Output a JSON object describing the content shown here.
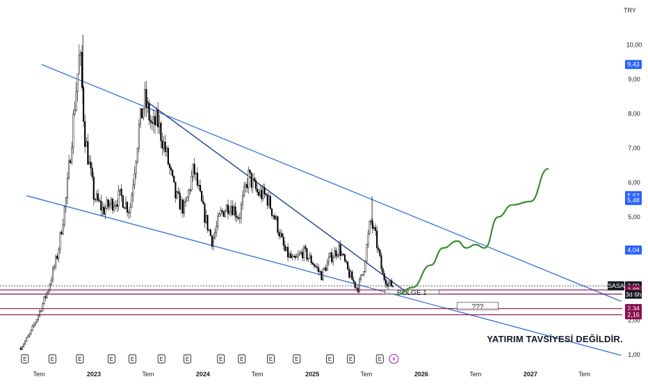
{
  "currency": "TRY",
  "symbol": "SASA",
  "countdown": "3d 6h",
  "disclaimer": "YATIRIM TAVSİYESİ DEĞİLDİR.",
  "colors": {
    "up": "#ffffff",
    "down": "#000000",
    "channel": "#2e6fd8",
    "trendline": "#1a3f8f",
    "horizontal": "#880e4f",
    "projection": "#3a8c2f",
    "badge_blue": "#2962ff",
    "badge_maroon": "#880e4f",
    "badge_dark": "#131722"
  },
  "chart_data": {
    "type": "candlestick",
    "y_axis": {
      "range": [
        0.8,
        11.0
      ],
      "ticks": [
        "1,00",
        "2,00",
        "3,00",
        "4,00",
        "5,00",
        "6,00",
        "7,00",
        "8,00",
        "9,00",
        "10,00"
      ]
    },
    "x_axis": {
      "ticks": [
        {
          "label": "Tem",
          "x": "2022-07-01",
          "year": false
        },
        {
          "label": "2023",
          "x": "2023-01-01",
          "year": true
        },
        {
          "label": "Tem",
          "x": "2023-07-01",
          "year": false
        },
        {
          "label": "2024",
          "x": "2024-01-01",
          "year": true
        },
        {
          "label": "Tem",
          "x": "2024-07-01",
          "year": false
        },
        {
          "label": "2025",
          "x": "2025-01-01",
          "year": true
        },
        {
          "label": "Tem",
          "x": "2025-07-01",
          "year": false
        },
        {
          "label": "2026",
          "x": "2026-01-01",
          "year": true
        },
        {
          "label": "Tem",
          "x": "2026-07-01",
          "year": false
        },
        {
          "label": "2027",
          "x": "2027-01-01",
          "year": true
        },
        {
          "label": "Tem",
          "x": "2027-07-01",
          "year": false
        }
      ]
    },
    "price_path": [
      [
        "2022-05-01",
        1.2
      ],
      [
        "2022-06-01",
        1.6
      ],
      [
        "2022-07-01",
        2.2
      ],
      [
        "2022-08-01",
        2.9
      ],
      [
        "2022-09-01",
        3.9
      ],
      [
        "2022-10-01",
        5.6
      ],
      [
        "2022-11-01",
        8.6
      ],
      [
        "2022-11-15",
        9.8
      ],
      [
        "2022-12-01",
        7.4
      ],
      [
        "2023-01-01",
        5.6
      ],
      [
        "2023-02-01",
        5.2
      ],
      [
        "2023-03-01",
        5.4
      ],
      [
        "2023-04-01",
        5.6
      ],
      [
        "2023-05-01",
        5.2
      ],
      [
        "2023-06-01",
        7.6
      ],
      [
        "2023-06-20",
        8.4
      ],
      [
        "2023-07-15",
        7.6
      ],
      [
        "2023-08-01",
        7.8
      ],
      [
        "2023-09-01",
        6.8
      ],
      [
        "2023-10-01",
        5.6
      ],
      [
        "2023-11-01",
        5.2
      ],
      [
        "2023-12-01",
        6.4
      ],
      [
        "2024-01-01",
        5.2
      ],
      [
        "2024-02-01",
        4.3
      ],
      [
        "2024-03-01",
        5.1
      ],
      [
        "2024-04-01",
        5.4
      ],
      [
        "2024-05-01",
        5.0
      ],
      [
        "2024-06-01",
        6.2
      ],
      [
        "2024-07-01",
        5.7
      ],
      [
        "2024-08-01",
        5.6
      ],
      [
        "2024-09-01",
        4.9
      ],
      [
        "2024-10-01",
        4.0
      ],
      [
        "2024-11-01",
        3.7
      ],
      [
        "2024-12-01",
        4.0
      ],
      [
        "2025-01-01",
        3.7
      ],
      [
        "2025-02-01",
        3.3
      ],
      [
        "2025-03-01",
        3.8
      ],
      [
        "2025-04-01",
        4.1
      ],
      [
        "2025-05-01",
        3.4
      ],
      [
        "2025-06-01",
        2.9
      ],
      [
        "2025-06-20",
        3.4
      ],
      [
        "2025-07-15",
        4.9
      ],
      [
        "2025-08-01",
        4.4
      ],
      [
        "2025-08-25",
        3.3
      ],
      [
        "2025-09-15",
        3.05
      ],
      [
        "2025-10-01",
        3.0
      ]
    ],
    "wick_highs": [
      [
        "2022-11-25",
        10.3
      ],
      [
        "2023-06-25",
        8.7
      ],
      [
        "2025-07-20",
        5.6
      ]
    ],
    "price_badges": [
      {
        "label": "9,43",
        "y": 9.43,
        "color": "blue"
      },
      {
        "label": "5,62",
        "y": 5.62,
        "color": "blue"
      },
      {
        "label": "5,48",
        "y": 5.48,
        "color": "blue"
      },
      {
        "label": "4,04",
        "y": 4.04,
        "color": "blue"
      },
      {
        "label": "3,00",
        "y": 3.0,
        "color": "dark"
      },
      {
        "label": "2,88",
        "y": 2.88,
        "color": "maroon"
      },
      {
        "label": "2,76",
        "y": 2.76,
        "color": "maroon"
      },
      {
        "label": "2,34",
        "y": 2.34,
        "color": "maroon"
      },
      {
        "label": "2,16",
        "y": 2.16,
        "color": "maroon"
      }
    ],
    "drawings": {
      "channel_upper": [
        [
          "2022-07-10",
          9.43
        ],
        [
          "2027-11-01",
          2.55
        ]
      ],
      "channel_lower": [
        [
          "2022-05-20",
          5.62
        ],
        [
          "2027-11-01",
          0.98
        ]
      ],
      "trendline": [
        [
          "2023-06-20",
          8.4
        ],
        [
          "2025-11-15",
          2.8
        ]
      ],
      "horizontals": [
        2.88,
        2.76,
        2.34,
        2.16
      ],
      "current_price_line": 3.0,
      "projection": [
        [
          "2025-10-15",
          2.75
        ],
        [
          "2025-12-01",
          2.95
        ],
        [
          "2026-02-01",
          3.6
        ],
        [
          "2026-03-15",
          4.1
        ],
        [
          "2026-05-01",
          4.3
        ],
        [
          "2026-06-01",
          4.1
        ],
        [
          "2026-07-01",
          4.2
        ],
        [
          "2026-08-01",
          4.1
        ],
        [
          "2026-09-15",
          5.0
        ],
        [
          "2026-11-01",
          5.35
        ],
        [
          "2027-01-01",
          5.45
        ],
        [
          "2027-03-01",
          6.4
        ]
      ],
      "zones": [
        {
          "label": "BÖLGE 1",
          "from": "2025-09-01",
          "to": "2026-03-01",
          "top": 2.88,
          "bottom": 2.76
        },
        {
          "label": "???",
          "from": "2026-05-01",
          "to": "2026-09-15",
          "top": 2.52,
          "bottom": 2.3
        }
      ]
    },
    "earnings_markers": {
      "label": "E",
      "dates": [
        "2022-05-15",
        "2022-08-15",
        "2022-11-15",
        "2023-03-01",
        "2023-05-10",
        "2023-08-15",
        "2023-11-10",
        "2024-03-01",
        "2024-05-10",
        "2024-08-15",
        "2024-11-10",
        "2025-03-01",
        "2025-05-10",
        "2025-08-15"
      ],
      "dividend_marker_date": "2025-10-01"
    }
  }
}
